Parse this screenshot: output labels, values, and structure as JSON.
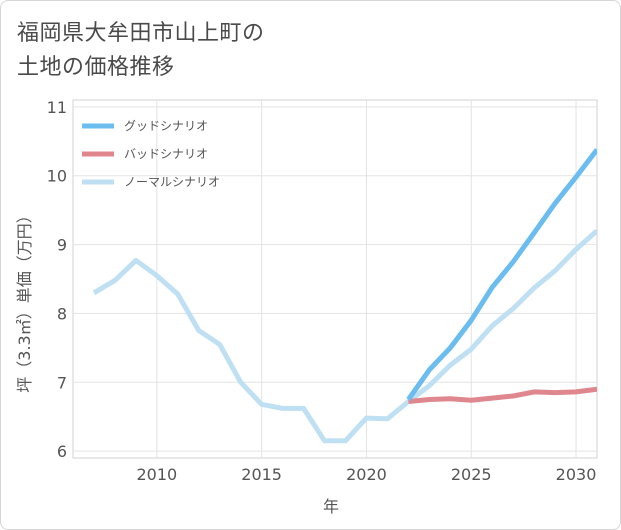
{
  "title": {
    "line1": "福岡県大牟田市山上町の",
    "line2": "土地の価格推移"
  },
  "chart_data": {
    "type": "line",
    "xlabel": "年",
    "ylabel": "坪（3.3㎡）単価（万円）",
    "xlim": [
      2006,
      2031
    ],
    "ylim": [
      5.9,
      11.1
    ],
    "x_ticks": [
      2010,
      2015,
      2020,
      2025,
      2030
    ],
    "y_ticks": [
      6,
      7,
      8,
      9,
      10,
      11
    ],
    "grid": true,
    "legend_position": "top-left",
    "series": [
      {
        "name": "グッドシナリオ",
        "color": "#6bbcef",
        "x": [
          2022,
          2023,
          2024,
          2025,
          2026,
          2027,
          2028,
          2029,
          2030,
          2031
        ],
        "y": [
          6.75,
          7.18,
          7.5,
          7.9,
          8.38,
          8.75,
          9.17,
          9.6,
          9.98,
          10.38
        ]
      },
      {
        "name": "バッドシナリオ",
        "color": "#e0868e",
        "x": [
          2022,
          2023,
          2024,
          2025,
          2026,
          2027,
          2028,
          2029,
          2030,
          2031
        ],
        "y": [
          6.72,
          6.75,
          6.76,
          6.74,
          6.77,
          6.8,
          6.86,
          6.85,
          6.86,
          6.9
        ]
      },
      {
        "name": "ノーマルシナリオ",
        "color": "#bfe0f2",
        "x": [
          2007,
          2008,
          2009,
          2010,
          2011,
          2012,
          2013,
          2014,
          2015,
          2016,
          2017,
          2018,
          2019,
          2020,
          2021,
          2022,
          2023,
          2024,
          2025,
          2026,
          2027,
          2028,
          2029,
          2030,
          2031
        ],
        "y": [
          8.3,
          8.48,
          8.77,
          8.55,
          8.28,
          7.75,
          7.55,
          7.0,
          6.68,
          6.62,
          6.62,
          6.15,
          6.15,
          6.48,
          6.47,
          6.72,
          6.95,
          7.25,
          7.48,
          7.82,
          8.07,
          8.37,
          8.62,
          8.93,
          9.2
        ]
      }
    ]
  }
}
